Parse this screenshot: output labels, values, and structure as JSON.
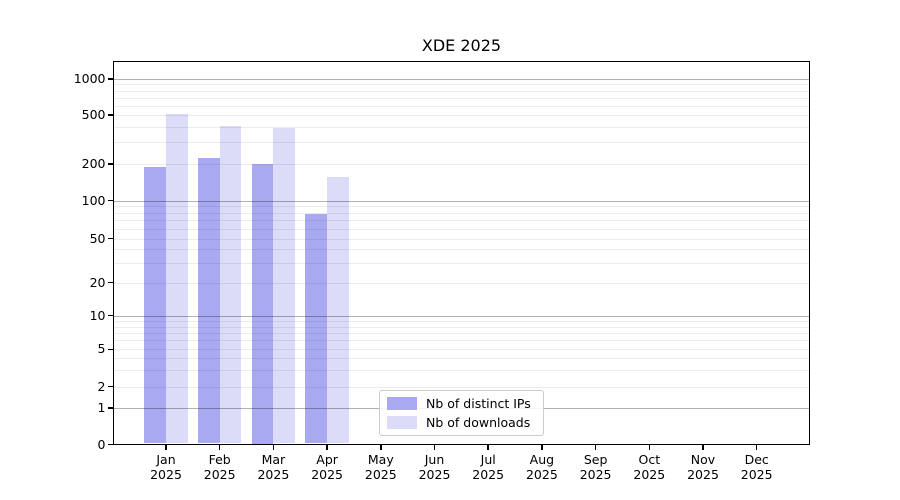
{
  "title": "XDE 2025",
  "chart_data": {
    "type": "bar",
    "scale": "symlog",
    "title": "XDE 2025",
    "categories": [
      "Jan",
      "Feb",
      "Mar",
      "Apr",
      "May",
      "Jun",
      "Jul",
      "Aug",
      "Sep",
      "Oct",
      "Nov",
      "Dec"
    ],
    "x_year_label": "2025",
    "series": [
      {
        "name": "Nb of distinct IPs",
        "color": "#a9a9f2",
        "values": [
          190,
          225,
          200,
          78,
          null,
          null,
          null,
          null,
          null,
          null,
          null,
          null
        ]
      },
      {
        "name": "Nb of downloads",
        "color": "#dcdcf8",
        "values": [
          510,
          410,
          390,
          155,
          null,
          null,
          null,
          null,
          null,
          null,
          null,
          null
        ]
      }
    ],
    "yticks": [
      0,
      1,
      2,
      5,
      10,
      20,
      50,
      100,
      200,
      500,
      1000
    ],
    "ylim": [
      0,
      1000
    ],
    "grid": "horizontal",
    "legend": {
      "position": "bottom-center-inside",
      "entries": [
        "Nb of distinct IPs",
        "Nb of downloads"
      ]
    }
  }
}
